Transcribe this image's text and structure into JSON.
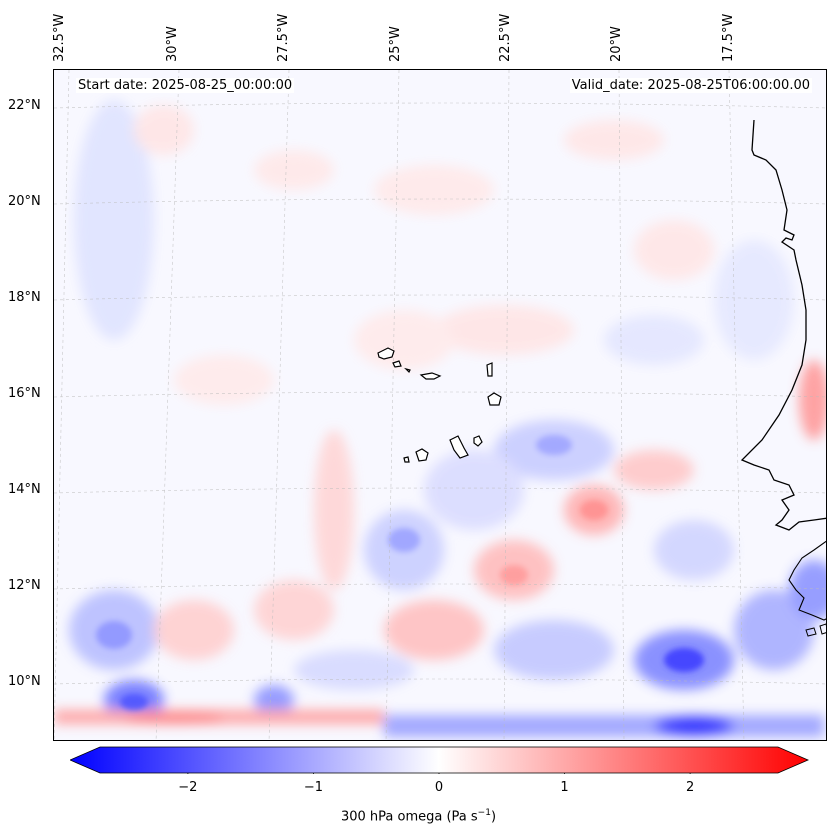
{
  "map": {
    "start_date": "Start date: 2025-08-25_00:00:00",
    "valid_date": "Valid_date: 2025-08-25T06:00:00.00",
    "lon_labels": [
      "32.5°W",
      "30°W",
      "27.5°W",
      "25°W",
      "22.5°W",
      "20°W",
      "17.5°W"
    ],
    "lat_labels": [
      "22°N",
      "20°N",
      "18°N",
      "16°N",
      "14°N",
      "12°N",
      "10°N"
    ],
    "variable": "300 hPa omega",
    "units_base": "(Pa s",
    "units_exp": "−1",
    "units_close": ")"
  },
  "colorbar": {
    "min": -2.7,
    "max": 2.7,
    "ticks": [
      -2,
      -1,
      0,
      1,
      2
    ],
    "tick_labels": [
      "−2",
      "−1",
      "0",
      "1",
      "2"
    ],
    "colors": {
      "negative": "#0000ff",
      "neutral": "#ffffff",
      "positive": "#ff0000"
    }
  },
  "colors": {
    "coastline": "#000000",
    "gridline": "#bbbbbb"
  }
}
